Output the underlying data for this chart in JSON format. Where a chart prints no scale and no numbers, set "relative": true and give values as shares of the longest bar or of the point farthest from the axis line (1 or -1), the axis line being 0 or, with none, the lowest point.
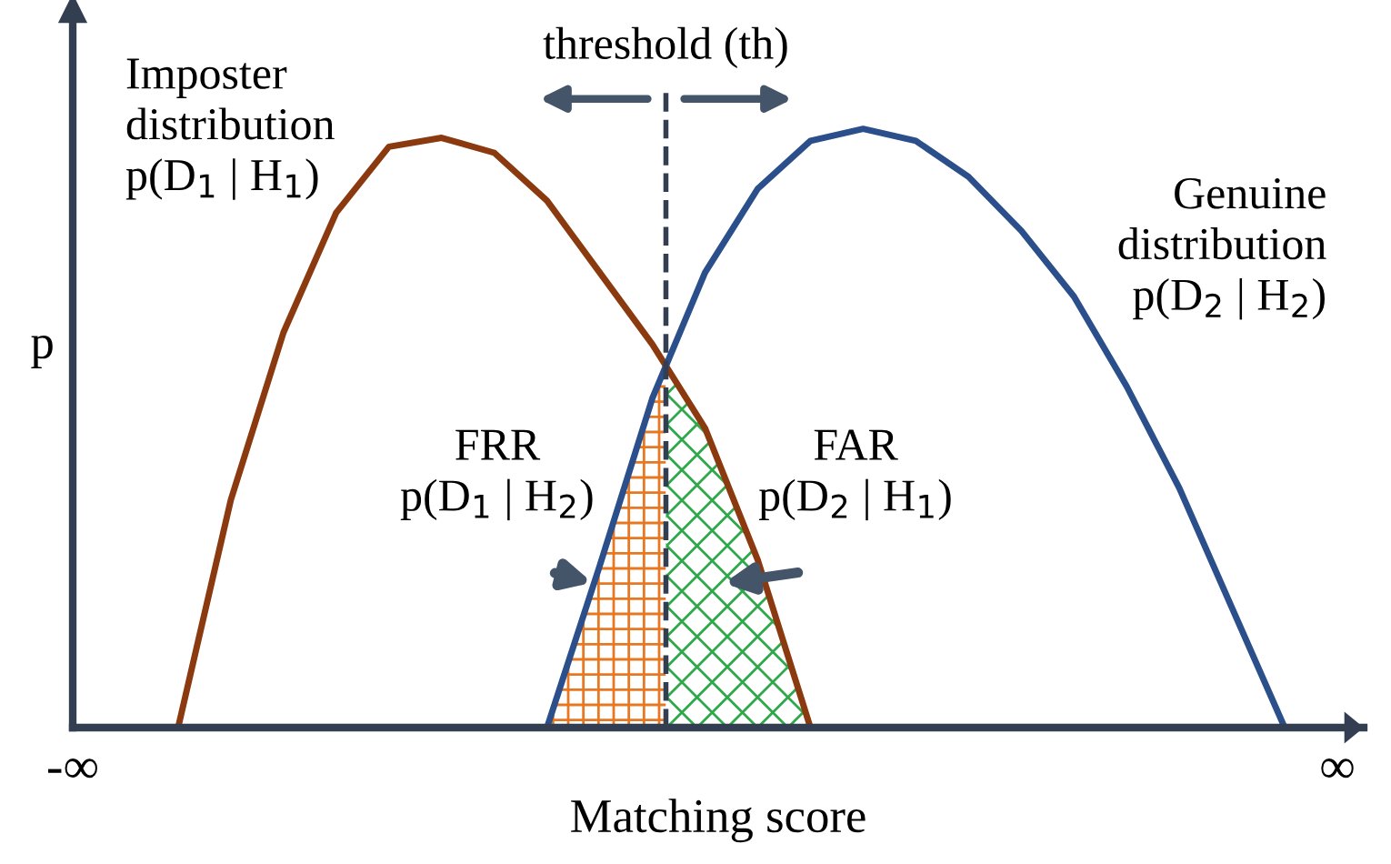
{
  "chart_data": {
    "type": "line",
    "relative": true,
    "xlabel": "Matching score",
    "ylabel": "p",
    "categories": [
      "-∞",
      null,
      null,
      null,
      null,
      null,
      null,
      null,
      null,
      null,
      null,
      null,
      null,
      null,
      null,
      null,
      null,
      null,
      null,
      null,
      null,
      null,
      null,
      null,
      "∞"
    ],
    "series": [
      {
        "color": "#8b3a10",
        "values": [
          null,
          null,
          0,
          0.38,
          0.66,
          0.86,
          0.97,
          0.985,
          0.96,
          0.88,
          0.76,
          0.64,
          0.5,
          0.28,
          0,
          null,
          null,
          null,
          null,
          null,
          null,
          null,
          null,
          null,
          null
        ]
      },
      {
        "color": "#2b4f8a",
        "values": [
          null,
          null,
          null,
          null,
          null,
          null,
          null,
          null,
          null,
          0,
          0.27,
          0.55,
          0.76,
          0.9,
          0.98,
          1,
          0.98,
          0.92,
          0.83,
          0.72,
          0.57,
          0.4,
          0.2,
          0,
          null
        ]
      }
    ],
    "annotations": [
      "threshold (th)",
      "Imposter\ndistribution\np(D$_{1}$ | H$_{1}$)",
      "Genuine\ndistribution\np(D$_{2}$ | H$_{2}$)",
      "FRR\np(D$_{1}$ | H$_{2}$)",
      "FAR\np(D$_{2}$ | H$_{1}$)"
    ],
    "marker": "none",
    "line_style": "solid"
  }
}
